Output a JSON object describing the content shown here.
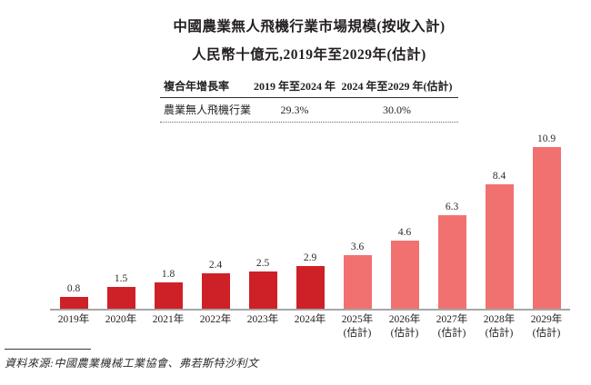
{
  "title": {
    "line1": "中國農業無人飛機行業市場規模(按收入計)",
    "line2": "人民幣十億元,2019年至2029年(估計)"
  },
  "cagr_table": {
    "col1_header": "複合年增長率",
    "col2_header": "2019 年至2024 年",
    "col3_header": "2024 年至2029 年(估計)",
    "row_label": "農業無人飛機行業",
    "col2_value": "29.3%",
    "col3_value": "30.0%"
  },
  "chart_data": {
    "type": "bar",
    "title": "中國農業無人飛機行業市場規模(按收入計)",
    "subtitle": "人民幣十億元,2019年至2029年(估計)",
    "ylabel": "人民幣十億元",
    "categories": [
      "2019年",
      "2020年",
      "2021年",
      "2022年",
      "2023年",
      "2024年",
      "2025年",
      "2026年",
      "2027年",
      "2028年",
      "2029年"
    ],
    "values": [
      0.8,
      1.5,
      1.8,
      2.4,
      2.5,
      2.9,
      3.6,
      4.6,
      6.3,
      8.4,
      10.9
    ],
    "estimate_from_index": 6,
    "estimate_suffix": "(估計)",
    "actual_color": "#CE2127",
    "estimate_color": "#F17170",
    "axis_color": "#A6A6A6",
    "ylim": [
      0,
      12
    ],
    "grid": false,
    "legend": "none",
    "value_labels": "above-bars"
  },
  "source": {
    "text": "資料來源:中國農業機械工業協會、弗若斯特沙利文"
  }
}
